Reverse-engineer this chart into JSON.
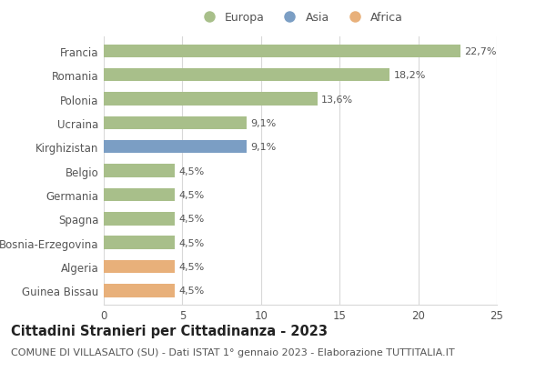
{
  "countries": [
    "Francia",
    "Romania",
    "Polonia",
    "Ucraina",
    "Kirghizistan",
    "Belgio",
    "Germania",
    "Spagna",
    "Bosnia-Erzegovina",
    "Algeria",
    "Guinea Bissau"
  ],
  "values": [
    22.7,
    18.2,
    13.6,
    9.1,
    9.1,
    4.5,
    4.5,
    4.5,
    4.5,
    4.5,
    4.5
  ],
  "labels": [
    "22,7%",
    "18,2%",
    "13,6%",
    "9,1%",
    "9,1%",
    "4,5%",
    "4,5%",
    "4,5%",
    "4,5%",
    "4,5%",
    "4,5%"
  ],
  "continents": [
    "Europa",
    "Europa",
    "Europa",
    "Europa",
    "Asia",
    "Europa",
    "Europa",
    "Europa",
    "Europa",
    "Africa",
    "Africa"
  ],
  "colors": {
    "Europa": "#a8bf8a",
    "Asia": "#7b9ec4",
    "Africa": "#e8b07a"
  },
  "legend_labels": [
    "Europa",
    "Asia",
    "Africa"
  ],
  "legend_colors": [
    "#a8bf8a",
    "#7b9ec4",
    "#e8b07a"
  ],
  "xlim": [
    0,
    25
  ],
  "xticks": [
    0,
    5,
    10,
    15,
    20,
    25
  ],
  "title": "Cittadini Stranieri per Cittadinanza - 2023",
  "subtitle": "COMUNE DI VILLASALTO (SU) - Dati ISTAT 1° gennaio 2023 - Elaborazione TUTTITALIA.IT",
  "bg_color": "#ffffff",
  "grid_color": "#d8d8d8",
  "bar_height": 0.55,
  "title_fontsize": 10.5,
  "subtitle_fontsize": 8,
  "label_fontsize": 8,
  "tick_fontsize": 8.5
}
